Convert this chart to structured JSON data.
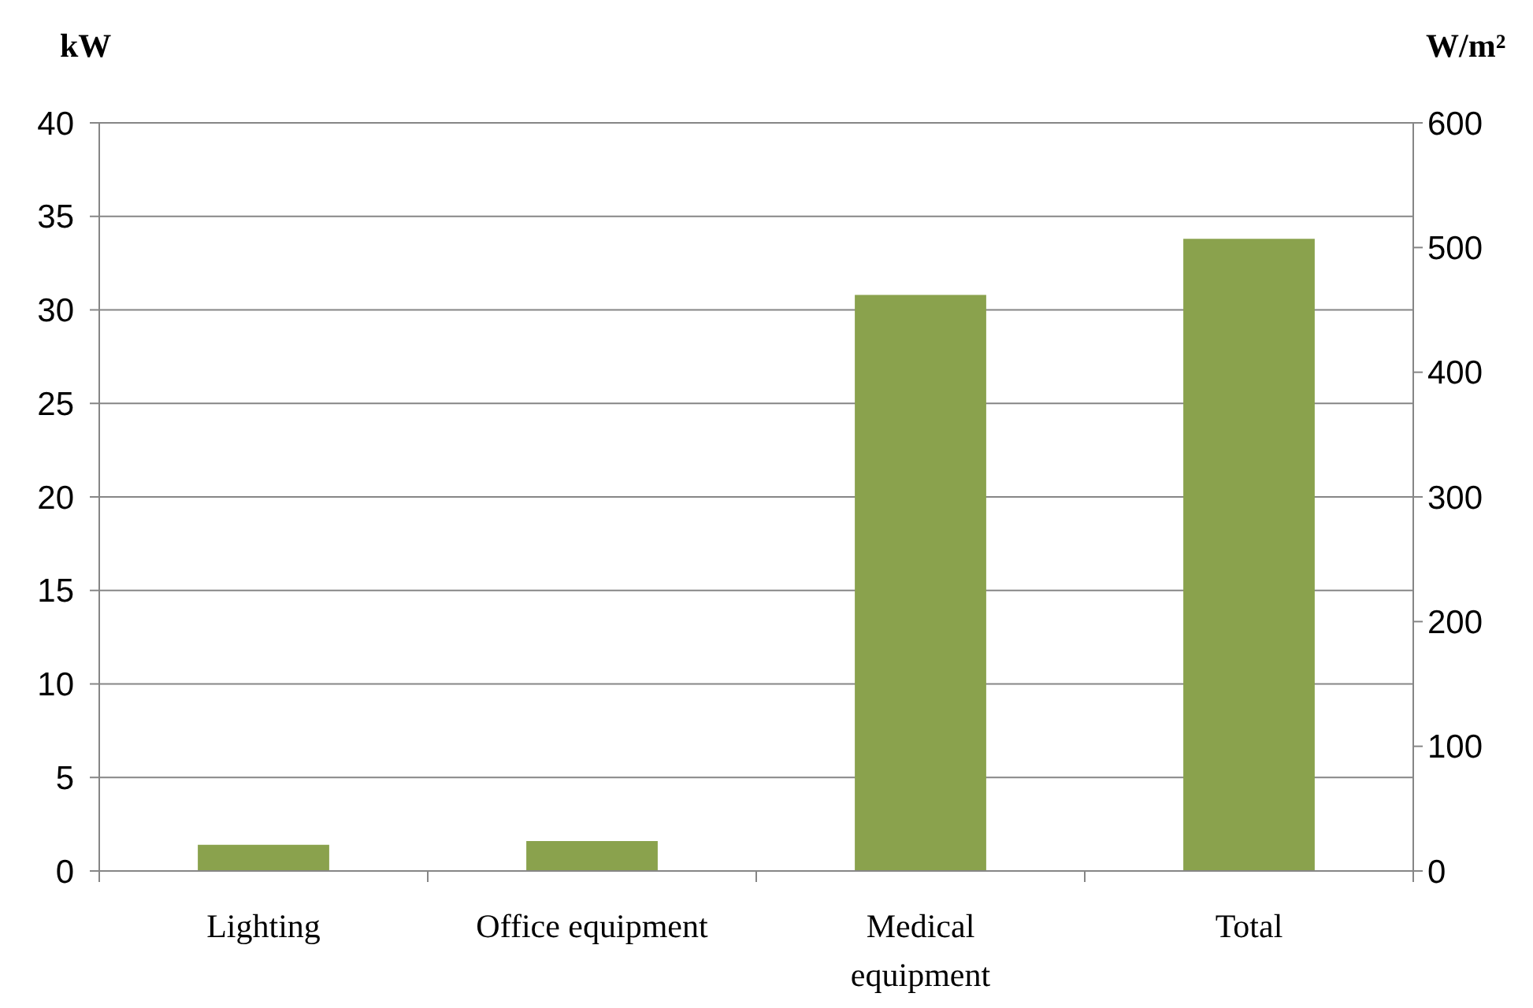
{
  "chart_data": {
    "type": "bar",
    "ylabel": "kW",
    "y2label": "W/m²",
    "categories": [
      "Lighting",
      "Office equipment",
      "Medical equipment",
      "Total"
    ],
    "series": [
      {
        "color": "#8aa24d",
        "values": [
          1.4,
          1.6,
          30.8,
          33.8
        ]
      }
    ],
    "ylim": [
      0,
      40
    ],
    "yticks": [
      0,
      5,
      10,
      15,
      20,
      25,
      30,
      35,
      40
    ],
    "y2lim": [
      0,
      600
    ],
    "y2ticks": [
      0,
      100,
      200,
      300,
      400,
      500,
      600
    ],
    "grid": "y"
  }
}
